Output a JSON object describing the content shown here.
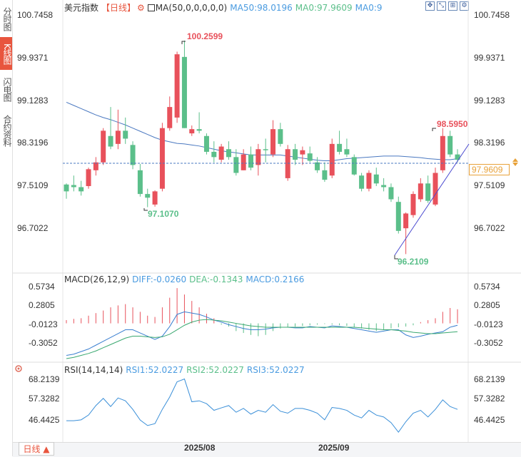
{
  "sidebar": {
    "tabs": [
      {
        "label": "分时图",
        "active": false
      },
      {
        "label": "K线图",
        "active": true
      },
      {
        "label": "闪电图",
        "active": false
      },
      {
        "label": "合约资料",
        "active": false
      }
    ]
  },
  "header": {
    "title": "美元指数",
    "period": "【日线】",
    "gear": "⚙",
    "ma_label": "MA(50,0,0,0,0,0)",
    "ma50": "MA50:98.0196",
    "ma0a": "MA0:97.9609",
    "ma0b": "MA0:9"
  },
  "toolbar_icons": [
    "expand-icon",
    "shrink-icon",
    "grid-icon",
    "settings-icon"
  ],
  "price_axis": {
    "left": [
      "100.7458",
      "99.9371",
      "99.1283",
      "98.3196",
      "97.5109",
      "96.7022"
    ],
    "right": [
      "100.7458",
      "99.9371",
      "99.1283",
      "98.3196",
      "97.5109",
      "96.7022"
    ],
    "current": "97.9609"
  },
  "annotations": {
    "high": "100.2599",
    "low_left": "97.1070",
    "recent_high": "98.5950",
    "low": "96.2109"
  },
  "macd": {
    "title": "MACD(26,12,9)",
    "diff": "DIFF:-0.0260",
    "dea": "DEA:-0.1343",
    "macd": "MACD:0.2166",
    "axis": [
      "0.5734",
      "0.2805",
      "-0.0123",
      "-0.3052"
    ]
  },
  "rsi": {
    "title": "RSI(14,14,14)",
    "rsi1": "RSI1:52.0227",
    "rsi2": "RSI2:52.0227",
    "rsi3": "RSI3:52.0227",
    "axis": [
      "68.2139",
      "57.3282",
      "46.4425"
    ]
  },
  "bottom": {
    "timeframe": "日线 ▲",
    "dates": [
      "2025/08",
      "2025/09"
    ]
  },
  "colors": {
    "up": "#e8515b",
    "down": "#5bbf8a",
    "ma": "#4a78c0",
    "accent": "#e8553e",
    "current": "#e8a23a"
  },
  "chart_data": {
    "type": "candlestick",
    "ylim": [
      95.9,
      101.0
    ],
    "candles": [
      [
        97.53,
        97.55,
        97.26,
        97.4
      ],
      [
        97.52,
        97.7,
        97.4,
        97.48
      ],
      [
        97.48,
        97.6,
        97.32,
        97.4
      ],
      [
        97.5,
        97.85,
        97.45,
        97.82
      ],
      [
        97.8,
        98.05,
        97.7,
        97.95
      ],
      [
        97.95,
        98.6,
        97.9,
        98.55
      ],
      [
        98.45,
        99.0,
        98.2,
        98.25
      ],
      [
        98.3,
        98.95,
        98.2,
        98.55
      ],
      [
        98.55,
        98.8,
        98.3,
        98.4
      ],
      [
        98.28,
        98.35,
        97.82,
        97.9
      ],
      [
        97.8,
        97.92,
        97.3,
        97.35
      ],
      [
        97.35,
        97.45,
        97.1,
        97.28
      ],
      [
        97.15,
        97.42,
        97.11,
        97.4
      ],
      [
        97.45,
        98.7,
        97.4,
        98.6
      ],
      [
        98.6,
        99.2,
        98.55,
        99.0
      ],
      [
        98.8,
        100.05,
        98.7,
        100.0
      ],
      [
        99.95,
        100.26,
        98.6,
        98.6
      ],
      [
        98.5,
        98.65,
        98.45,
        98.58
      ],
      [
        98.58,
        98.9,
        98.5,
        98.55
      ],
      [
        98.45,
        98.5,
        98.1,
        98.15
      ],
      [
        98.15,
        98.35,
        97.95,
        98.05
      ],
      [
        98.0,
        98.3,
        97.95,
        98.25
      ],
      [
        98.2,
        98.35,
        98.0,
        98.05
      ],
      [
        98.05,
        98.2,
        97.7,
        97.75
      ],
      [
        97.8,
        98.2,
        97.8,
        98.1
      ],
      [
        98.1,
        98.25,
        97.8,
        97.85
      ],
      [
        97.9,
        98.3,
        97.7,
        98.2
      ],
      [
        98.2,
        98.4,
        97.95,
        98.18
      ],
      [
        98.1,
        98.75,
        98.05,
        98.58
      ],
      [
        98.58,
        98.7,
        98.25,
        98.3
      ],
      [
        97.65,
        98.28,
        97.6,
        98.2
      ],
      [
        98.2,
        98.3,
        97.9,
        98.0
      ],
      [
        98.1,
        98.25,
        97.9,
        98.18
      ],
      [
        98.12,
        98.25,
        97.95,
        97.98
      ],
      [
        97.95,
        98.05,
        97.75,
        97.8
      ],
      [
        97.8,
        97.95,
        97.58,
        97.62
      ],
      [
        97.7,
        98.4,
        97.65,
        98.3
      ],
      [
        98.3,
        98.55,
        98.1,
        98.15
      ],
      [
        98.2,
        98.4,
        98.05,
        98.1
      ],
      [
        98.05,
        98.1,
        97.7,
        97.72
      ],
      [
        97.7,
        97.75,
        97.4,
        97.45
      ],
      [
        97.45,
        97.8,
        97.4,
        97.75
      ],
      [
        97.72,
        97.85,
        97.5,
        97.55
      ],
      [
        97.52,
        97.65,
        97.4,
        97.48
      ],
      [
        97.48,
        97.55,
        97.2,
        97.25
      ],
      [
        97.2,
        97.3,
        96.6,
        96.65
      ],
      [
        96.7,
        97.0,
        96.21,
        96.98
      ],
      [
        96.95,
        97.4,
        96.9,
        97.35
      ],
      [
        97.25,
        97.65,
        97.2,
        97.55
      ],
      [
        97.55,
        97.7,
        97.18,
        97.22
      ],
      [
        97.15,
        97.85,
        97.12,
        97.75
      ],
      [
        97.8,
        98.6,
        97.75,
        98.45
      ],
      [
        98.45,
        98.55,
        98.05,
        98.1
      ],
      [
        98.1,
        98.2,
        97.95,
        98.0
      ]
    ],
    "ma50": [
      99.09,
      99.03,
      98.97,
      98.91,
      98.85,
      98.8,
      98.76,
      98.71,
      98.66,
      98.6,
      98.54,
      98.48,
      98.42,
      98.37,
      98.34,
      98.31,
      98.3,
      98.28,
      98.26,
      98.23,
      98.2,
      98.17,
      98.15,
      98.13,
      98.11,
      98.09,
      98.09,
      98.09,
      98.09,
      98.09,
      98.07,
      98.05,
      98.03,
      98.01,
      97.99,
      97.98,
      97.98,
      98.0,
      98.02,
      98.03,
      98.04,
      98.05,
      98.06,
      98.07,
      98.07,
      98.07,
      98.06,
      98.05,
      98.04,
      98.02,
      98.01,
      98.0,
      98.0,
      98.02
    ],
    "current_price": 97.9609,
    "macd_hist": [
      0.05,
      0.07,
      0.08,
      0.12,
      0.16,
      0.2,
      0.25,
      0.28,
      0.3,
      0.25,
      0.18,
      0.12,
      0.1,
      0.25,
      0.4,
      0.55,
      0.45,
      0.35,
      0.25,
      0.15,
      0.08,
      -0.02,
      -0.05,
      -0.12,
      -0.15,
      -0.18,
      -0.2,
      -0.18,
      -0.12,
      -0.08,
      -0.06,
      -0.05,
      -0.04,
      -0.03,
      -0.02,
      -0.01,
      -0.02,
      -0.03,
      -0.04,
      -0.06,
      -0.08,
      -0.1,
      -0.12,
      -0.1,
      -0.08,
      -0.06,
      -0.05,
      -0.03,
      0.02,
      0.05,
      0.08,
      0.18,
      0.24,
      0.22
    ],
    "macd_diff": [
      -0.5,
      -0.48,
      -0.44,
      -0.4,
      -0.34,
      -0.28,
      -0.22,
      -0.16,
      -0.1,
      -0.1,
      -0.15,
      -0.2,
      -0.25,
      -0.2,
      -0.05,
      0.14,
      0.18,
      0.16,
      0.14,
      0.1,
      0.05,
      0.02,
      -0.02,
      -0.05,
      -0.08,
      -0.1,
      -0.1,
      -0.09,
      -0.07,
      -0.06,
      -0.06,
      -0.07,
      -0.07,
      -0.05,
      -0.06,
      -0.07,
      -0.04,
      -0.05,
      -0.06,
      -0.08,
      -0.1,
      -0.12,
      -0.14,
      -0.12,
      -0.1,
      -0.1,
      -0.18,
      -0.22,
      -0.2,
      -0.17,
      -0.15,
      -0.13,
      -0.06,
      -0.03
    ],
    "macd_dea": [
      -0.55,
      -0.53,
      -0.5,
      -0.47,
      -0.43,
      -0.38,
      -0.33,
      -0.28,
      -0.23,
      -0.2,
      -0.2,
      -0.21,
      -0.22,
      -0.21,
      -0.17,
      -0.1,
      -0.03,
      0.02,
      0.05,
      0.06,
      0.05,
      0.04,
      0.02,
      0.0,
      -0.02,
      -0.04,
      -0.05,
      -0.06,
      -0.06,
      -0.06,
      -0.06,
      -0.06,
      -0.06,
      -0.06,
      -0.06,
      -0.06,
      -0.06,
      -0.06,
      -0.06,
      -0.06,
      -0.07,
      -0.08,
      -0.09,
      -0.1,
      -0.1,
      -0.11,
      -0.12,
      -0.14,
      -0.15,
      -0.16,
      -0.16,
      -0.15,
      -0.14,
      -0.13
    ],
    "rsi": [
      46.0,
      46.0,
      46.5,
      49.0,
      54.0,
      57.8,
      53.5,
      58.0,
      56.5,
      52.0,
      46.4,
      43.5,
      44.5,
      52.0,
      58.5,
      66.5,
      68.0,
      56.0,
      56.5,
      55.0,
      51.5,
      52.8,
      54.0,
      50.5,
      52.5,
      49.5,
      51.5,
      50.5,
      54.5,
      51.0,
      50.0,
      52.5,
      52.5,
      51.5,
      50.0,
      46.5,
      53.0,
      52.5,
      51.5,
      49.0,
      47.5,
      51.5,
      49.0,
      48.0,
      45.0,
      40.0,
      45.5,
      50.0,
      51.5,
      48.0,
      52.0,
      57.0,
      53.5,
      52.0
    ]
  }
}
